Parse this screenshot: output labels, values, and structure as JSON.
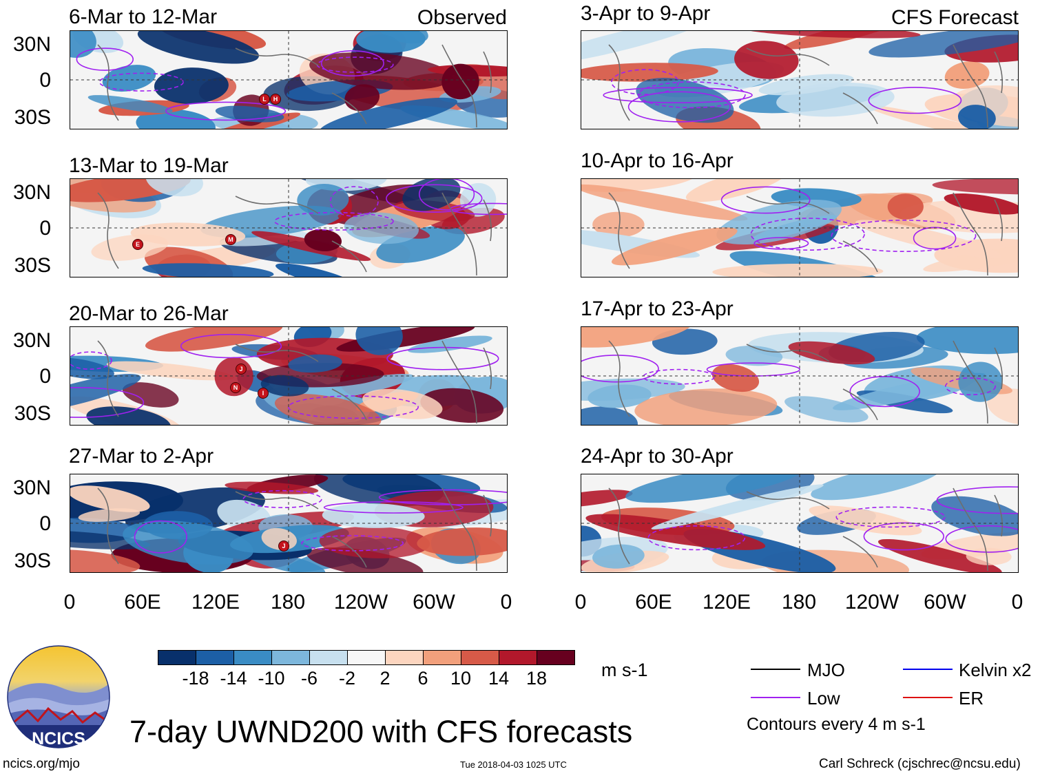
{
  "panels": {
    "observed": [
      {
        "title": "6-Mar to 12-Mar",
        "tag": "Observed",
        "storms": [
          "L",
          "H"
        ]
      },
      {
        "title": "13-Mar to 19-Mar",
        "tag": "",
        "storms": [
          "E",
          "M"
        ]
      },
      {
        "title": "20-Mar to 26-Mar",
        "tag": "",
        "storms": [
          "J",
          "N",
          "I"
        ]
      },
      {
        "title": "27-Mar to 2-Apr",
        "tag": "",
        "storms": [
          "J"
        ]
      }
    ],
    "forecast": [
      {
        "title": "3-Apr to 9-Apr",
        "tag": "CFS Forecast"
      },
      {
        "title": "10-Apr to 16-Apr",
        "tag": ""
      },
      {
        "title": "17-Apr to 23-Apr",
        "tag": ""
      },
      {
        "title": "24-Apr to 30-Apr",
        "tag": ""
      }
    ]
  },
  "axes": {
    "y_labels": [
      "30N",
      "0",
      "30S"
    ],
    "x_labels": [
      "0",
      "60E",
      "120E",
      "180",
      "120W",
      "60W",
      "0"
    ]
  },
  "colorbar": {
    "labels": [
      "-18",
      "-14",
      "-10",
      "-6",
      "-2",
      "2",
      "6",
      "10",
      "14",
      "18"
    ],
    "colors": [
      "#08306b",
      "#1c5fa6",
      "#3a8cc4",
      "#7db7dc",
      "#c7e0ef",
      "#f7f7f7",
      "#fcd5bf",
      "#f2a07c",
      "#d75a48",
      "#b2182b",
      "#67001f"
    ],
    "units": "m s-1"
  },
  "legend": {
    "items": [
      {
        "label": "MJO",
        "color": "#000000"
      },
      {
        "label": "Kelvin x2",
        "color": "#0000ee"
      },
      {
        "label": "Low",
        "color": "#a020f0"
      },
      {
        "label": "ER",
        "color": "#dd1111"
      }
    ],
    "contours_note": "Contours every 4 m s-1"
  },
  "logo": {
    "text": "NCICS"
  },
  "main_title": "7-day UWND200 with CFS forecasts",
  "footer": {
    "url": "ncics.org/mjo",
    "timestamp": "Tue 2018-04-03 1025 UTC",
    "author": "Carl Schreck (cjschrec@ncsu.edu)"
  }
}
